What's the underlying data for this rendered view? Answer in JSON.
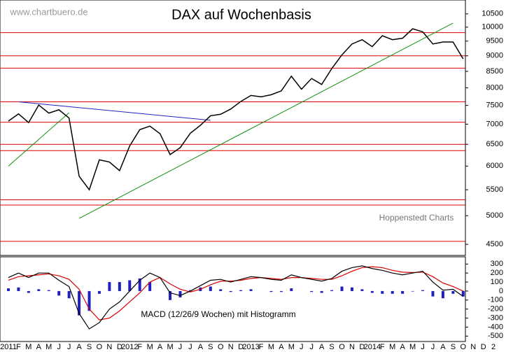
{
  "watermark": "www.chartbuero.de",
  "source": "Hoppenstedt Charts",
  "chart_data": [
    {
      "type": "line",
      "title": "DAX auf Wochenbasis",
      "log_scale": true,
      "color": "#000000",
      "categories": [
        "2011",
        "F",
        "M",
        "A",
        "M",
        "J",
        "J",
        "A",
        "S",
        "O",
        "N",
        "D",
        "2012",
        "F",
        "M",
        "A",
        "M",
        "J",
        "J",
        "A",
        "S",
        "O",
        "N",
        "D",
        "2013",
        "F",
        "M",
        "A",
        "M",
        "J",
        "J",
        "A",
        "S",
        "O",
        "N",
        "D",
        "2014",
        "F",
        "M",
        "A",
        "M",
        "J",
        "J",
        "A",
        "S",
        "O",
        "N",
        "D",
        "2"
      ],
      "values": [
        7080,
        7270,
        7040,
        7510,
        7290,
        7380,
        7160,
        5780,
        5500,
        6140,
        6090,
        5900,
        6460,
        6860,
        6950,
        6760,
        6260,
        6420,
        6770,
        6970,
        7220,
        7260,
        7400,
        7610,
        7780,
        7740,
        7800,
        7910,
        8350,
        7960,
        8280,
        8100,
        8590,
        9030,
        9400,
        9550,
        9310,
        9690,
        9550,
        9600,
        9940,
        9830,
        9400,
        9470,
        9470,
        8900,
        null,
        null,
        null
      ],
      "ylim": [
        4320,
        11050
      ],
      "yticks": [
        4500,
        5000,
        5500,
        6000,
        6500,
        7000,
        7500,
        8000,
        8500,
        9000,
        9500,
        10000,
        10500
      ],
      "horizontal_lines": {
        "color": "#dd0000",
        "values": [
          9800,
          9000,
          8600,
          7600,
          7050,
          6500,
          6350,
          5300,
          5200,
          4550
        ]
      },
      "trendlines": [
        {
          "color": "#2020c0",
          "x": [
            1,
            20
          ],
          "y": [
            7600,
            7100
          ]
        },
        {
          "color": "#109010",
          "x": [
            7,
            44
          ],
          "y": [
            4950,
            10150
          ]
        },
        {
          "color": "#109010",
          "x": [
            0,
            6
          ],
          "y": [
            6000,
            7300
          ]
        }
      ]
    },
    {
      "type": "macd",
      "label": "MACD (12/26/9 Wochen) mit Histogramm",
      "ylim": [
        -560,
        380
      ],
      "yticks": [
        300,
        200,
        100,
        0,
        -100,
        -200,
        -300,
        -400,
        -500
      ],
      "macd": {
        "color": "#000000",
        "values": [
          150,
          200,
          150,
          200,
          200,
          120,
          50,
          -250,
          -420,
          -350,
          -200,
          -120,
          0,
          120,
          200,
          150,
          -20,
          -50,
          0,
          60,
          120,
          130,
          100,
          130,
          160,
          150,
          130,
          120,
          180,
          150,
          130,
          110,
          140,
          220,
          260,
          280,
          250,
          230,
          200,
          180,
          200,
          220,
          100,
          10,
          20,
          -60,
          null,
          null,
          null
        ]
      },
      "signal": {
        "color": "#dd0000",
        "values": [
          120,
          160,
          170,
          180,
          190,
          170,
          130,
          20,
          -200,
          -320,
          -300,
          -220,
          -120,
          -20,
          100,
          150,
          80,
          20,
          -10,
          20,
          70,
          110,
          110,
          120,
          140,
          150,
          140,
          130,
          150,
          150,
          140,
          130,
          130,
          170,
          220,
          260,
          270,
          260,
          230,
          210,
          205,
          210,
          160,
          90,
          50,
          0,
          null,
          null,
          null
        ]
      },
      "histogram": {
        "color": "#2020c0",
        "values": [
          30,
          40,
          -20,
          20,
          10,
          -50,
          -80,
          -270,
          -220,
          -30,
          100,
          100,
          120,
          140,
          100,
          0,
          -100,
          -70,
          10,
          40,
          50,
          20,
          -10,
          10,
          20,
          0,
          -10,
          -10,
          30,
          0,
          -10,
          -20,
          10,
          50,
          40,
          20,
          -20,
          -30,
          -30,
          -30,
          -5,
          10,
          -60,
          -80,
          -30,
          -60,
          null,
          null,
          null
        ]
      }
    }
  ]
}
